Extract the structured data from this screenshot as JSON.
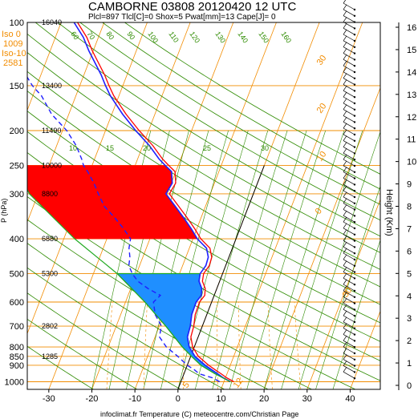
{
  "chart_data": {
    "type": "line",
    "title": "CAMBORNE 03808 20120420 12 UTC",
    "subtitle": "Plcl=897 Tlcl[C]=0 Shox=5 Pwat[mm]=13 Cape[J]= 0",
    "xlabel": "infoclimat.fr Temperature (C) meteocentre.com/Christian Page",
    "ylabel": "P (hPa)",
    "y2label": "Height (Km)",
    "xlim": [
      -35,
      47
    ],
    "ylim": [
      1050,
      100
    ],
    "x_ticks": [
      "-30",
      "-20",
      "-10",
      "0",
      "10",
      "20",
      "30",
      "40"
    ],
    "x_tick_values": [
      -30,
      -20,
      -10,
      0,
      10,
      20,
      30,
      40
    ],
    "p_levels": [
      100,
      150,
      200,
      250,
      300,
      400,
      500,
      600,
      700,
      800,
      850,
      900,
      1000
    ],
    "p_labels": [
      "100",
      "150",
      "200",
      "250",
      "300",
      "400",
      "500",
      "600",
      "700",
      "800",
      "850",
      "900",
      "1000"
    ],
    "height_labels": [
      {
        "p": 100,
        "text": "16040"
      },
      {
        "p": 150,
        "text": "13400"
      },
      {
        "p": 200,
        "text": "11490"
      },
      {
        "p": 250,
        "text": "10000"
      },
      {
        "p": 300,
        "text": "8800"
      },
      {
        "p": 400,
        "text": "6880"
      },
      {
        "p": 500,
        "text": "5300"
      },
      {
        "p": 700,
        "text": "2802"
      },
      {
        "p": 850,
        "text": "1285"
      }
    ],
    "iso_labels": {
      "iso0_label": "Iso 0",
      "iso0_value": "1009",
      "iso10_label": "Iso-10",
      "iso10_value": "2581"
    },
    "km_ticks": [
      "0",
      "1",
      "2",
      "3",
      "4",
      "5",
      "6",
      "7",
      "8",
      "9",
      "10",
      "11",
      "12",
      "13",
      "14",
      "15",
      "16"
    ],
    "isotherm_labels": [
      {
        "t": 0,
        "text": "0"
      },
      {
        "t": 10,
        "text": "10"
      },
      {
        "t": 20,
        "text": "20"
      },
      {
        "t": 30,
        "text": "30"
      },
      {
        "t": 5,
        "text": "5"
      },
      {
        "t": 12,
        "text": "12"
      },
      {
        "t": 30,
        "text": "30"
      }
    ],
    "theta_labels": [
      "60",
      "70",
      "80",
      "90",
      "100",
      "110",
      "120",
      "130",
      "140",
      "150",
      "160"
    ],
    "mixing_labels": [
      "10",
      "15",
      "20",
      "25",
      "30"
    ],
    "adiabat_left_labels": [
      "50",
      "40",
      "30",
      "25",
      "20",
      "10",
      "0",
      "10",
      "20"
    ],
    "series": [
      {
        "name": "Temperature",
        "color": "#1f1fff",
        "points": [
          [
            1000,
            11.5
          ],
          [
            975,
            9.5
          ],
          [
            950,
            7.8
          ],
          [
            925,
            6.0
          ],
          [
            900,
            4.2
          ],
          [
            850,
            1.0
          ],
          [
            800,
            -1.2
          ],
          [
            750,
            -2.5
          ],
          [
            700,
            -2.8
          ],
          [
            650,
            -3.5
          ],
          [
            600,
            -3.6
          ],
          [
            575,
            -3.0
          ],
          [
            550,
            -3.5
          ],
          [
            525,
            -4.8
          ],
          [
            500,
            -5.2
          ],
          [
            475,
            -4.6
          ],
          [
            450,
            -4.8
          ],
          [
            425,
            -6.0
          ],
          [
            400,
            -9.0
          ],
          [
            375,
            -11.3
          ],
          [
            350,
            -14.0
          ],
          [
            325,
            -17.0
          ],
          [
            300,
            -20.3
          ],
          [
            280,
            -19.8
          ],
          [
            260,
            -21.0
          ],
          [
            250,
            -23.0
          ],
          [
            240,
            -25.0
          ],
          [
            220,
            -28.5
          ],
          [
            200,
            -33.0
          ],
          [
            180,
            -37.5
          ],
          [
            160,
            -42.0
          ],
          [
            150,
            -44.0
          ],
          [
            140,
            -46.0
          ],
          [
            120,
            -51.0
          ],
          [
            110,
            -53.5
          ],
          [
            100,
            -57.0
          ]
        ]
      },
      {
        "name": "Dewpoint",
        "color": "#1f1fff",
        "points": [
          [
            1000,
            9.0
          ],
          [
            975,
            7.0
          ],
          [
            950,
            3.5
          ],
          [
            925,
            2.0
          ],
          [
            900,
            0.0
          ],
          [
            850,
            -3.0
          ],
          [
            800,
            -6.5
          ],
          [
            750,
            -9.0
          ],
          [
            700,
            -9.5
          ],
          [
            650,
            -12.0
          ],
          [
            600,
            -13.5
          ],
          [
            575,
            -12.5
          ],
          [
            550,
            -16.0
          ],
          [
            525,
            -19.0
          ],
          [
            500,
            -21.0
          ],
          [
            475,
            -22.5
          ],
          [
            450,
            -23.0
          ],
          [
            425,
            -24.0
          ],
          [
            400,
            -24.5
          ],
          [
            375,
            -27.0
          ],
          [
            350,
            -30.0
          ],
          [
            325,
            -33.5
          ],
          [
            300,
            -36.0
          ],
          [
            280,
            -38.0
          ],
          [
            260,
            -40.5
          ],
          [
            250,
            -42.0
          ],
          [
            240,
            -43.0
          ],
          [
            220,
            -45.5
          ],
          [
            200,
            -49.0
          ],
          [
            180,
            -54.0
          ],
          [
            160,
            -58.0
          ],
          [
            150,
            -61.0
          ],
          [
            140,
            -63.5
          ],
          [
            120,
            -66.0
          ],
          [
            110,
            -70.0
          ],
          [
            100,
            -74.0
          ]
        ]
      },
      {
        "name": "Parcel",
        "color": "#22aa22",
        "points": [
          [
            1000,
            11.5
          ],
          [
            950,
            7.2
          ],
          [
            900,
            3.2
          ],
          [
            850,
            0.2
          ],
          [
            800,
            -2.8
          ],
          [
            700,
            -8.5
          ],
          [
            600,
            -15.5
          ],
          [
            500,
            -24.5
          ],
          [
            400,
            -37.5
          ],
          [
            300,
            -52.0
          ],
          [
            250,
            -58.0
          ]
        ]
      }
    ],
    "colors": {
      "temperature": "#1f1fff",
      "virtual_temp": "#ff0000",
      "cape": "#ff0000",
      "cin": "#1f8fff",
      "isotherm": "#f28c00",
      "dry_adiabat": "#2e8b00",
      "moist_adiabat": "#2e8b00",
      "mixing_ratio": "#f28c00",
      "wind_barb": "#000000"
    },
    "grid": true
  }
}
